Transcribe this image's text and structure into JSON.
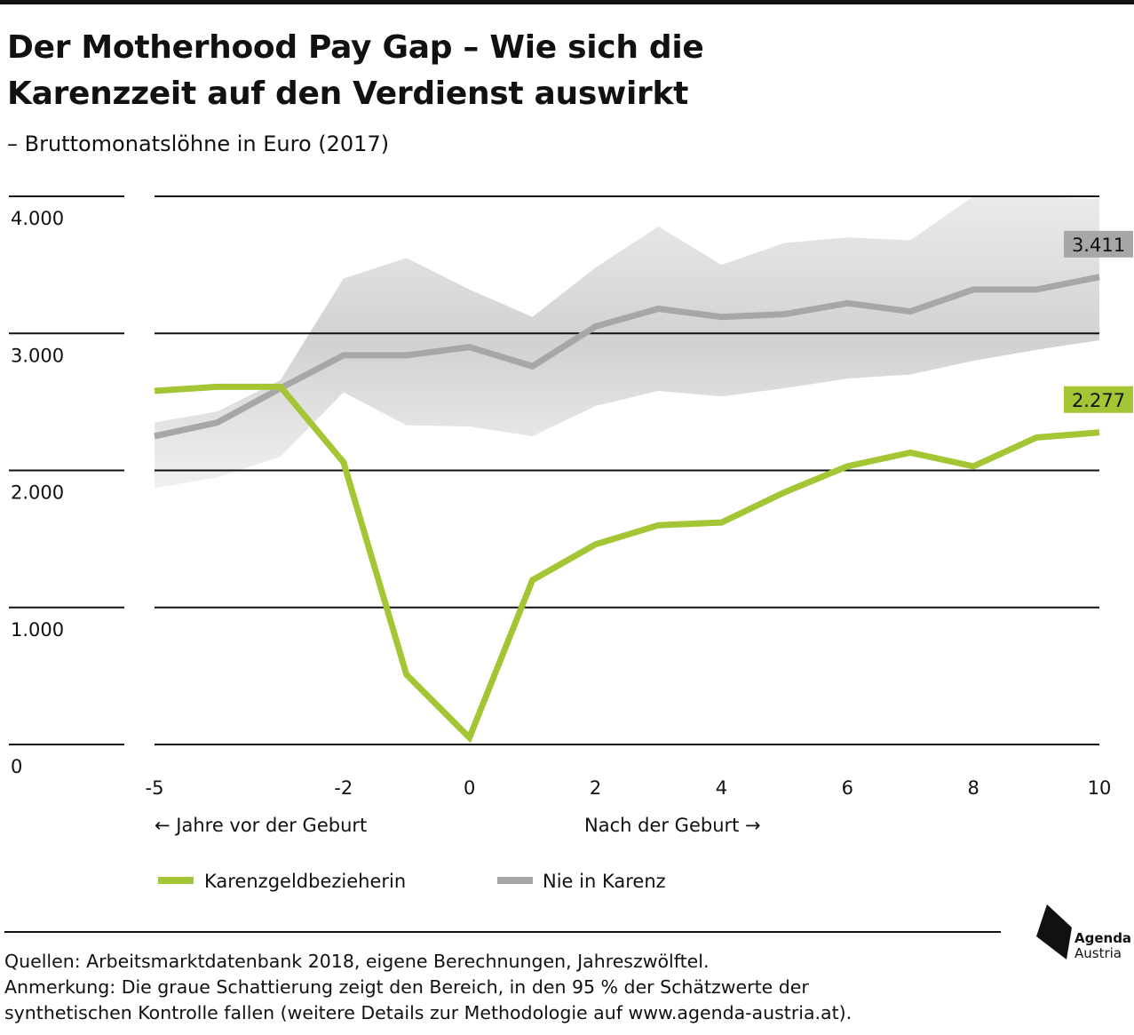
{
  "header": {
    "title_line1": "Der Motherhood Pay Gap – Wie sich die",
    "title_line2": "Karenzzeit auf den Verdienst auswirkt",
    "subtitle": "– Bruttomonatslöhne in Euro (2017)"
  },
  "chart_data": {
    "type": "line",
    "title": "Der Motherhood Pay Gap – Wie sich die Karenzzeit auf den Verdienst auswirkt",
    "subtitle": "– Bruttomonatslöhne in Euro (2017)",
    "x": [
      -5,
      -4,
      -3,
      -2,
      -1,
      0,
      1,
      2,
      3,
      4,
      5,
      6,
      7,
      8,
      9,
      10
    ],
    "x_ticks": [
      -5,
      -2,
      0,
      2,
      4,
      6,
      8,
      10
    ],
    "x_tick_labels": [
      "-5",
      "-2",
      "0",
      "2",
      "4",
      "6",
      "8",
      "10"
    ],
    "xlim": [
      -5,
      10
    ],
    "y_ticks": [
      0,
      1000,
      2000,
      3000,
      4000
    ],
    "y_tick_labels": [
      "0",
      "1.000",
      "2.000",
      "3.000",
      "4.000"
    ],
    "ylim": [
      0,
      4000
    ],
    "grid": true,
    "x_annotations": {
      "left": "← Jahre vor der Geburt",
      "right": "Nach der Geburt →"
    },
    "series": [
      {
        "name": "Karenzgeldbezieherin",
        "color": "#a5c634",
        "values": [
          2580,
          2610,
          2610,
          2060,
          510,
          50,
          1200,
          1460,
          1600,
          1620,
          1840,
          2030,
          2130,
          2030,
          2240,
          2277
        ],
        "end_label": "2.277"
      },
      {
        "name": "Nie in Karenz",
        "color": "#a7a7a7",
        "values": [
          2250,
          2350,
          2600,
          2840,
          2840,
          2900,
          2760,
          3050,
          3180,
          3120,
          3140,
          3220,
          3160,
          3320,
          3320,
          3411
        ],
        "end_label": "3.411",
        "band_upper": [
          2350,
          2430,
          2660,
          3400,
          3550,
          3320,
          3120,
          3480,
          3780,
          3500,
          3660,
          3700,
          3680,
          4000,
          4000,
          3980
        ],
        "band_lower": [
          1870,
          1950,
          2100,
          2570,
          2330,
          2320,
          2250,
          2470,
          2580,
          2540,
          2600,
          2670,
          2700,
          2800,
          2880,
          2950
        ]
      }
    ],
    "legend_position": "bottom-left"
  },
  "legend": {
    "item1": "Karenzgeldbezieherin",
    "item2": "Nie in Karenz"
  },
  "footer": {
    "sources": "Quellen: Arbeitsmarktdatenbank 2018, eigene Berechnungen, Jahreszwölftel.",
    "note_line1": "Anmerkung: Die graue Schattierung zeigt den Bereich, in den 95 % der Schätzwerte der",
    "note_line2": "synthetischen Kontrolle fallen (weitere Details zur Methodologie auf www.agenda-austria.at)."
  },
  "logo": {
    "line1": "Agenda",
    "line2": "Austria"
  }
}
